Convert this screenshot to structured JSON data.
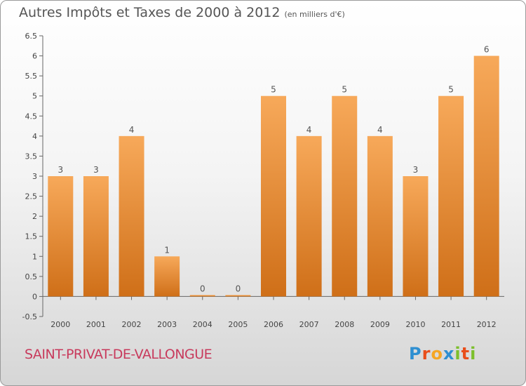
{
  "header": {
    "title": "Autres Impôts et Taxes de 2000 à 2012",
    "unit": "(en milliers d'€)"
  },
  "footer": {
    "city": "SAINT-PRIVAT-DE-VALLONGUE"
  },
  "logo": {
    "text": "Proxiti",
    "letters": [
      {
        "ch": "P",
        "color": "#2e8fd1"
      },
      {
        "ch": "r",
        "color": "#e94e1b"
      },
      {
        "ch": "o",
        "color": "#f5a623"
      },
      {
        "ch": "x",
        "color": "#2e8fd1"
      },
      {
        "ch": "i",
        "color": "#7cbf2b"
      },
      {
        "ch": "t",
        "color": "#e94e1b"
      },
      {
        "ch": "i",
        "color": "#7cbf2b"
      }
    ]
  },
  "colors": {
    "bar_light": "#f7a95a",
    "bar_dark": "#cf6f18",
    "axis": "#666666",
    "grid": "#dddddd"
  },
  "chart_data": {
    "type": "bar",
    "title": "Autres Impôts et Taxes de 2000 à 2012",
    "xlabel": "",
    "ylabel": "",
    "categories": [
      "2000",
      "2001",
      "2002",
      "2003",
      "2004",
      "2005",
      "2006",
      "2007",
      "2008",
      "2009",
      "2010",
      "2011",
      "2012"
    ],
    "values": [
      3,
      3,
      4,
      1,
      0,
      0,
      5,
      4,
      5,
      4,
      3,
      5,
      6
    ],
    "data_labels": [
      "3",
      "3",
      "4",
      "1",
      "0",
      "0",
      "5",
      "4",
      "5",
      "4",
      "3",
      "5",
      "6"
    ],
    "ylim": [
      -0.5,
      6.5
    ],
    "yticks": [
      -0.5,
      0,
      0.5,
      1,
      1.5,
      2,
      2.5,
      3,
      3.5,
      4,
      4.5,
      5,
      5.5,
      6,
      6.5
    ],
    "ytick_labels": [
      "-0.5",
      "0",
      "0.5",
      "1",
      "1.5",
      "2",
      "2.5",
      "3",
      "3.5",
      "4",
      "4.5",
      "5",
      "5.5",
      "6",
      "6.5"
    ],
    "grid": false,
    "legend": "none"
  }
}
